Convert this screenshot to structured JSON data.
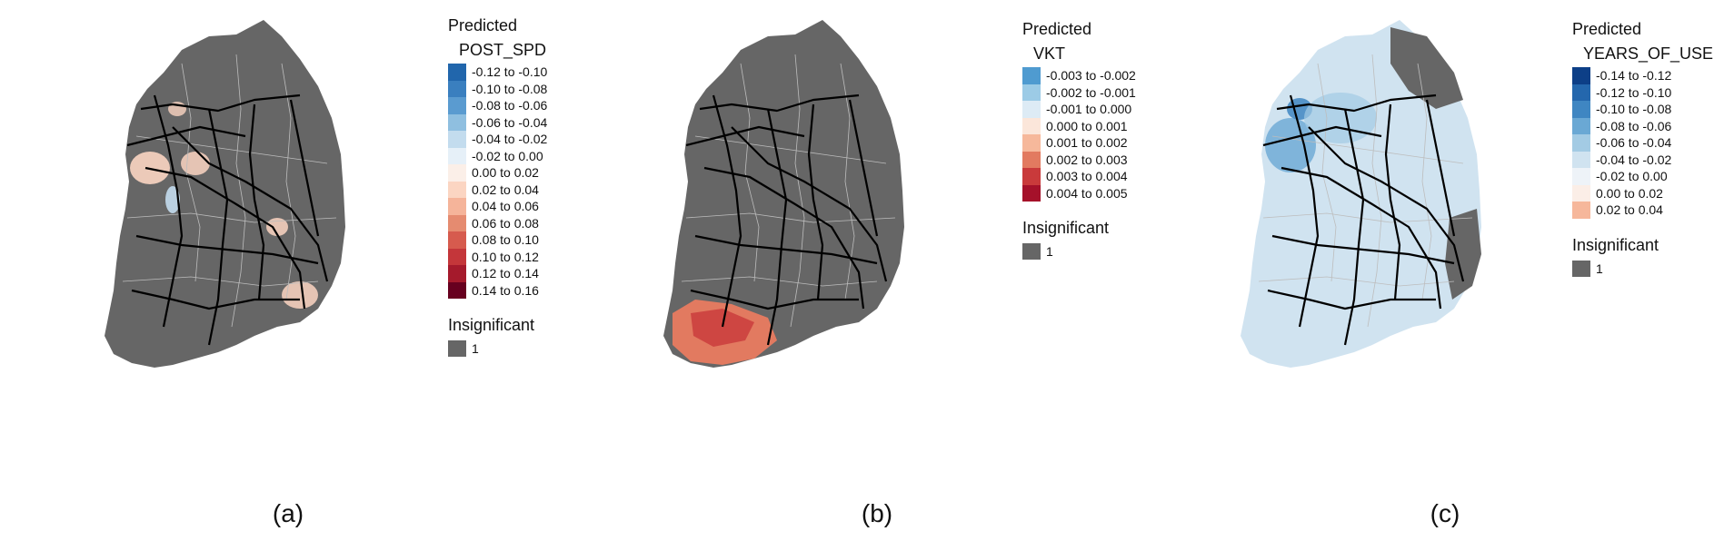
{
  "colors": {
    "insignificant": "#666666",
    "road": "#000000",
    "boundary": "#bdbdbd",
    "background": "#ffffff"
  },
  "panels": [
    {
      "caption": "(a)",
      "legend_title": "Predicted",
      "variable": "POST_SPD",
      "classes": [
        {
          "label": "-0.12 to -0.10",
          "color": "#2166ac"
        },
        {
          "label": "-0.10 to -0.08",
          "color": "#3a7fbf"
        },
        {
          "label": "-0.08 to -0.06",
          "color": "#5a9bd0"
        },
        {
          "label": "-0.06 to -0.04",
          "color": "#8fbfe0"
        },
        {
          "label": "-0.04 to -0.02",
          "color": "#c3dcee"
        },
        {
          "label": "-0.02 to 0.00",
          "color": "#e6f0f8"
        },
        {
          "label": "0.00 to 0.02",
          "color": "#fbefe8"
        },
        {
          "label": "0.02 to 0.04",
          "color": "#fbd5c2"
        },
        {
          "label": "0.04 to 0.06",
          "color": "#f5b49a"
        },
        {
          "label": "0.06 to 0.08",
          "color": "#e58b70"
        },
        {
          "label": "0.08 to 0.10",
          "color": "#d65b4e"
        },
        {
          "label": "0.10 to 0.12",
          "color": "#c4363a"
        },
        {
          "label": "0.12 to 0.14",
          "color": "#a51a2c"
        },
        {
          "label": "0.14 to 0.16",
          "color": "#67001f"
        }
      ],
      "insignificant_title": "Insignificant",
      "insignificant_label": "1"
    },
    {
      "caption": "(b)",
      "legend_title": "Predicted",
      "variable": "VKT",
      "classes": [
        {
          "label": "-0.003 to -0.002",
          "color": "#4f9bd0"
        },
        {
          "label": "-0.002 to -0.001",
          "color": "#9ccbe6"
        },
        {
          "label": "-0.001 to 0.000",
          "color": "#ddebf5"
        },
        {
          "label": "0.000 to 0.001",
          "color": "#fbe6da"
        },
        {
          "label": "0.001 to 0.002",
          "color": "#f6b89b"
        },
        {
          "label": "0.002 to 0.003",
          "color": "#e27a60"
        },
        {
          "label": "0.003 to 0.004",
          "color": "#c93a3b"
        },
        {
          "label": "0.004 to 0.005",
          "color": "#a5112a"
        }
      ],
      "insignificant_title": "Insignificant",
      "insignificant_label": "1"
    },
    {
      "caption": "(c)",
      "legend_title": "Predicted",
      "variable": "YEARS_OF_USE",
      "classes": [
        {
          "label": "-0.14 to -0.12",
          "color": "#0d3f87"
        },
        {
          "label": "-0.12 to -0.10",
          "color": "#2467ad"
        },
        {
          "label": "-0.10 to -0.08",
          "color": "#3f86c2"
        },
        {
          "label": "-0.08 to -0.06",
          "color": "#6aa8d4"
        },
        {
          "label": "-0.06 to -0.04",
          "color": "#a3cbe4"
        },
        {
          "label": "-0.04 to -0.02",
          "color": "#d0e3f0"
        },
        {
          "label": "-0.02 to 0.00",
          "color": "#eef3f8"
        },
        {
          "label": "0.00 to 0.02",
          "color": "#fbeee7"
        },
        {
          "label": "0.02 to 0.04",
          "color": "#f6b79b"
        }
      ],
      "insignificant_title": "Insignificant",
      "insignificant_label": "1"
    }
  ]
}
